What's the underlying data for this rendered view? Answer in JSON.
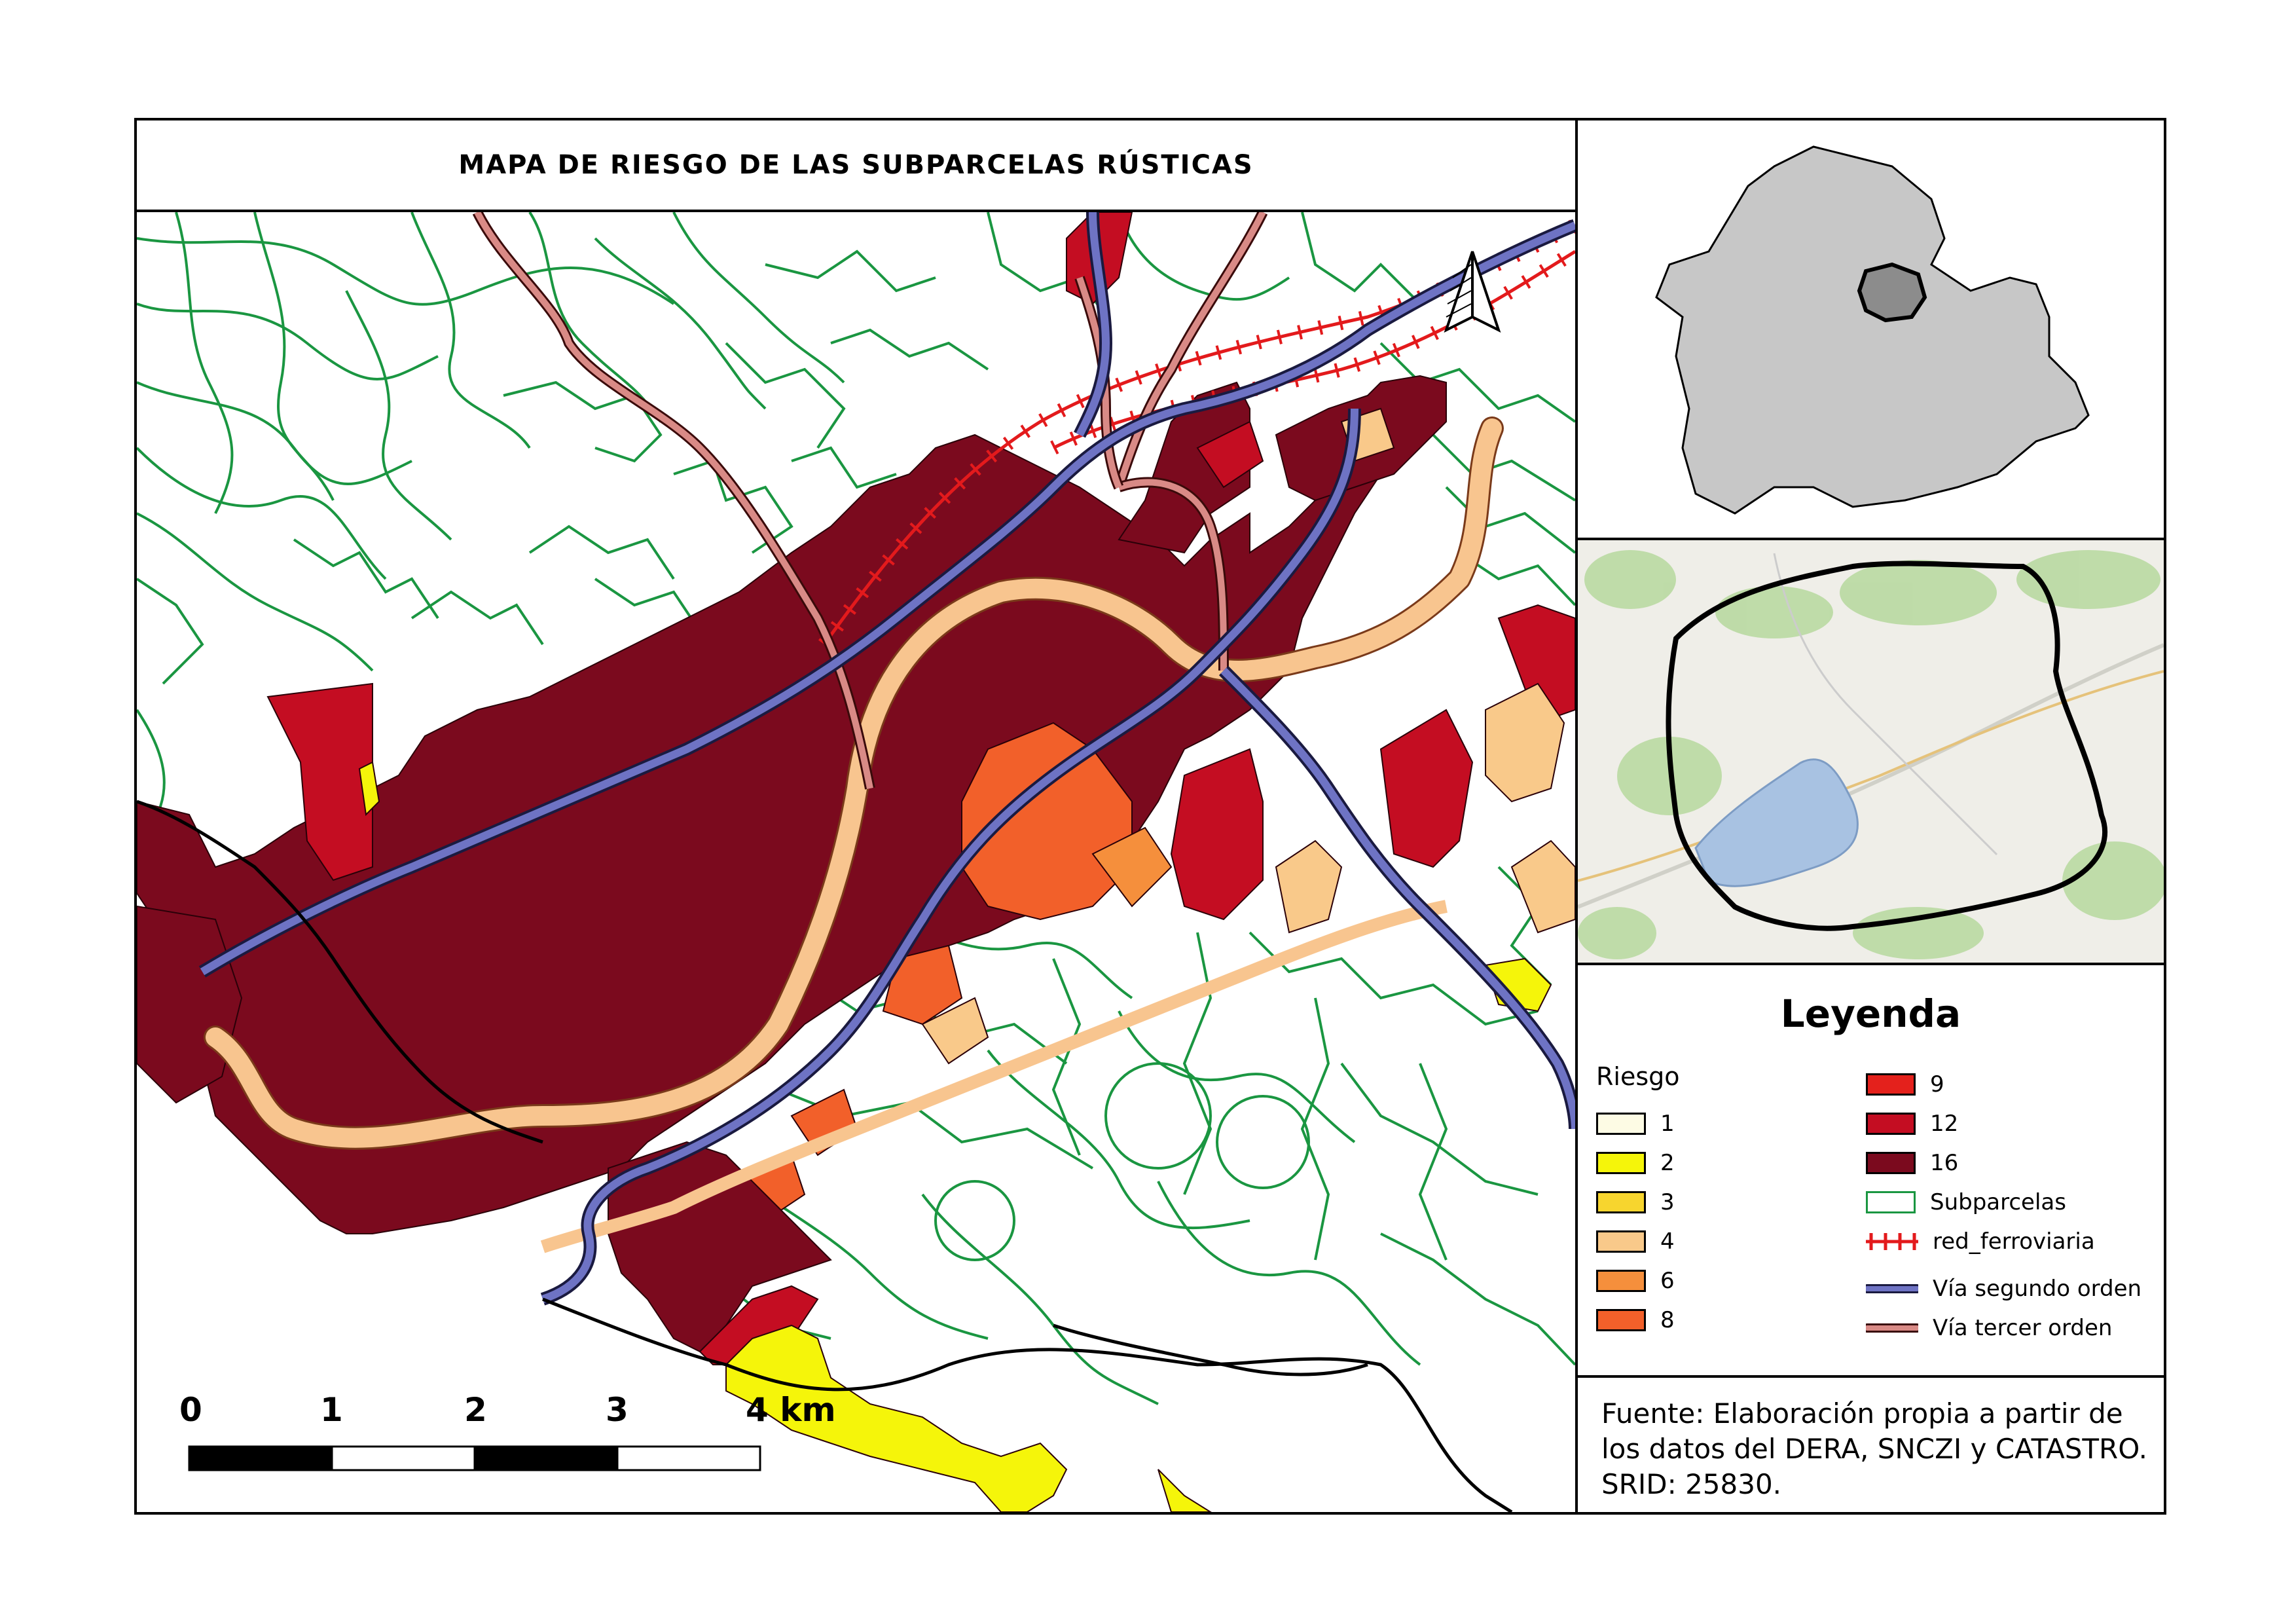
{
  "title": "MAPA DE RIESGO DE LAS SUBPARCELAS RÚSTICAS",
  "scale_bar": {
    "labels": [
      "0",
      "1",
      "2",
      "3",
      "4 km"
    ]
  },
  "legend": {
    "title": "Leyenda",
    "heading": "Riesgo",
    "risk_classes": [
      {
        "label": "1",
        "color": "#fdfbe4"
      },
      {
        "label": "2",
        "color": "#f5f50a"
      },
      {
        "label": "3",
        "color": "#f7d52e"
      },
      {
        "label": "4",
        "color": "#f9c98a"
      },
      {
        "label": "6",
        "color": "#f58f3c"
      },
      {
        "label": "8",
        "color": "#f2602a"
      },
      {
        "label": "9",
        "color": "#e4211c"
      },
      {
        "label": "12",
        "color": "#c40d22"
      },
      {
        "label": "16",
        "color": "#7b0a1e"
      }
    ],
    "layers": [
      {
        "label": "Subparcelas",
        "color": "#1a9641"
      },
      {
        "label": "red_ferroviaria",
        "color": "#e31a1c"
      },
      {
        "label": "Vía segundo orden",
        "color": "#6e73c4"
      },
      {
        "label": "Vía tercer orden",
        "color": "#d98a86"
      }
    ]
  },
  "source_note": "Fuente: Elaboración propia a partir de los datos del DERA, SNCZI y CATASTRO. SRID: 25830.",
  "icons": [
    "north-arrow-icon"
  ],
  "colors": {
    "parcel_lines": "#1a9641",
    "river": "#f8c58f",
    "roads_secondary": "#6e73c4",
    "roads_tertiary": "#d98a86",
    "railway": "#e31a1c",
    "province_fill": "#c7c7c7",
    "municipality_fill": "#8c8c8c",
    "lake": "#a8c2e2"
  }
}
